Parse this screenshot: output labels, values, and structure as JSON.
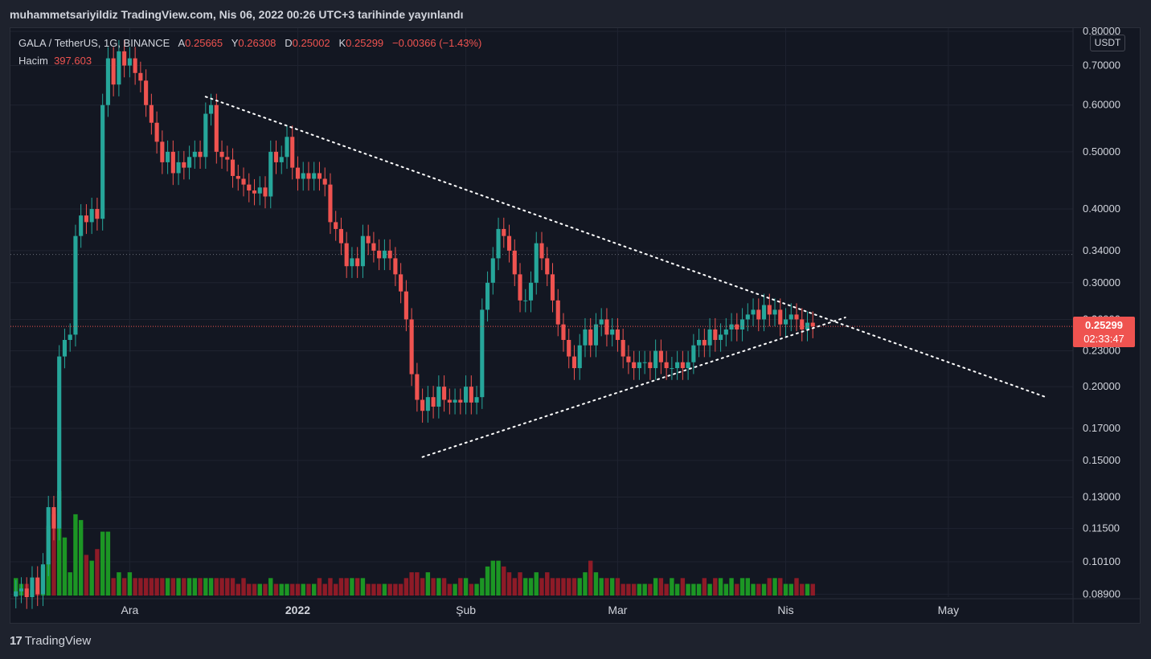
{
  "caption": "muhammetsariyildiz TradingView.com, Nis 06, 2022 00:26 UTC+3 tarihinde yayınlandı",
  "legend": {
    "symbol": "GALA / TetherUS, 1G, BINANCE",
    "open_label": "A",
    "open": "0.25665",
    "high_label": "Y",
    "high": "0.26308",
    "low_label": "D",
    "low": "0.25002",
    "close_label": "K",
    "close": "0.25299",
    "change": "−0.00366 (−1.43%)",
    "volume_label": "Hacim",
    "volume": "397.603"
  },
  "currency": "USDT",
  "last_price": {
    "price": "0.25299",
    "countdown": "02:33:47"
  },
  "footer": {
    "brand": "TradingView"
  },
  "colors": {
    "up": "#26a69a",
    "down": "#ef5350",
    "vol_up": "#1c9624",
    "vol_down": "#8e1b27",
    "background": "#131722",
    "grid": "#1f2330"
  },
  "chart_data": {
    "type": "candlestick",
    "y_scale": "log",
    "ylim": [
      0.088,
      0.81
    ],
    "y_ticks": [
      0.8,
      0.7,
      0.6,
      0.5,
      0.4,
      0.34,
      0.3,
      0.26,
      0.23,
      0.2,
      0.17,
      0.15,
      0.13,
      0.115,
      0.101,
      0.089
    ],
    "y_tick_labels": [
      "0.80000",
      "0.70000",
      "0.60000",
      "0.50000",
      "0.40000",
      "0.34000",
      "0.30000",
      "0.26000",
      "0.23000",
      "0.20000",
      "0.17000",
      "0.15000",
      "0.13000",
      "0.11500",
      "0.10100",
      "0.08900"
    ],
    "x_ticks": [
      {
        "label": "Ara",
        "date": "2021-12-01"
      },
      {
        "label": "2022",
        "date": "2022-01-01"
      },
      {
        "label": "Şub",
        "date": "2022-02-01"
      },
      {
        "label": "Mar",
        "date": "2022-03-01"
      },
      {
        "label": "Nis",
        "date": "2022-04-01"
      },
      {
        "label": "May",
        "date": "2022-05-01"
      }
    ],
    "x_range": [
      "2021-11-09",
      "2022-05-24"
    ],
    "dashed_price_level": 0.335,
    "candles": [
      {
        "d": "2021-11-10",
        "c": 0.09
      },
      {
        "d": "2021-11-11",
        "c": 0.091
      },
      {
        "d": "2021-11-12",
        "c": 0.088
      },
      {
        "d": "2021-11-13",
        "c": 0.095
      },
      {
        "d": "2021-11-14",
        "c": 0.089
      },
      {
        "d": "2021-11-15",
        "c": 0.1
      },
      {
        "d": "2021-11-16",
        "c": 0.125
      },
      {
        "d": "2021-11-17",
        "c": 0.115
      },
      {
        "d": "2021-11-18",
        "c": 0.225
      },
      {
        "d": "2021-11-19",
        "c": 0.24
      },
      {
        "d": "2021-11-20",
        "c": 0.245
      },
      {
        "d": "2021-11-21",
        "c": 0.36
      },
      {
        "d": "2021-11-22",
        "c": 0.39
      },
      {
        "d": "2021-11-23",
        "c": 0.38
      },
      {
        "d": "2021-11-24",
        "c": 0.4
      },
      {
        "d": "2021-11-25",
        "c": 0.385
      },
      {
        "d": "2021-11-26",
        "c": 0.6
      },
      {
        "d": "2021-11-27",
        "c": 0.72
      },
      {
        "d": "2021-11-28",
        "c": 0.65
      },
      {
        "d": "2021-11-29",
        "c": 0.74
      },
      {
        "d": "2021-11-30",
        "c": 0.7
      },
      {
        "d": "2021-12-01",
        "c": 0.72
      },
      {
        "d": "2021-12-02",
        "c": 0.68
      },
      {
        "d": "2021-12-03",
        "c": 0.66
      },
      {
        "d": "2021-12-04",
        "c": 0.6
      },
      {
        "d": "2021-12-05",
        "c": 0.56
      },
      {
        "d": "2021-12-06",
        "c": 0.52
      },
      {
        "d": "2021-12-07",
        "c": 0.48
      },
      {
        "d": "2021-12-08",
        "c": 0.5
      },
      {
        "d": "2021-12-09",
        "c": 0.46
      },
      {
        "d": "2021-12-10",
        "c": 0.48
      },
      {
        "d": "2021-12-11",
        "c": 0.47
      },
      {
        "d": "2021-12-12",
        "c": 0.49
      },
      {
        "d": "2021-12-13",
        "c": 0.5
      },
      {
        "d": "2021-12-14",
        "c": 0.49
      },
      {
        "d": "2021-12-15",
        "c": 0.58
      },
      {
        "d": "2021-12-16",
        "c": 0.6
      },
      {
        "d": "2021-12-17",
        "c": 0.5
      },
      {
        "d": "2021-12-18",
        "c": 0.49
      },
      {
        "d": "2021-12-19",
        "c": 0.485
      },
      {
        "d": "2021-12-20",
        "c": 0.455
      },
      {
        "d": "2021-12-21",
        "c": 0.45
      },
      {
        "d": "2021-12-22",
        "c": 0.44
      },
      {
        "d": "2021-12-23",
        "c": 0.43
      },
      {
        "d": "2021-12-24",
        "c": 0.425
      },
      {
        "d": "2021-12-25",
        "c": 0.435
      },
      {
        "d": "2021-12-26",
        "c": 0.42
      },
      {
        "d": "2021-12-27",
        "c": 0.5
      },
      {
        "d": "2021-12-28",
        "c": 0.48
      },
      {
        "d": "2021-12-29",
        "c": 0.49
      },
      {
        "d": "2021-12-30",
        "c": 0.53
      },
      {
        "d": "2021-12-31",
        "c": 0.47
      },
      {
        "d": "2022-01-01",
        "c": 0.45
      },
      {
        "d": "2022-01-02",
        "c": 0.46
      },
      {
        "d": "2022-01-03",
        "c": 0.45
      },
      {
        "d": "2022-01-04",
        "c": 0.46
      },
      {
        "d": "2022-01-05",
        "c": 0.45
      },
      {
        "d": "2022-01-06",
        "c": 0.44
      },
      {
        "d": "2022-01-07",
        "c": 0.38
      },
      {
        "d": "2022-01-08",
        "c": 0.37
      },
      {
        "d": "2022-01-09",
        "c": 0.35
      },
      {
        "d": "2022-01-10",
        "c": 0.32
      },
      {
        "d": "2022-01-11",
        "c": 0.33
      },
      {
        "d": "2022-01-12",
        "c": 0.32
      },
      {
        "d": "2022-01-13",
        "c": 0.36
      },
      {
        "d": "2022-01-14",
        "c": 0.35
      },
      {
        "d": "2022-01-15",
        "c": 0.34
      },
      {
        "d": "2022-01-16",
        "c": 0.33
      },
      {
        "d": "2022-01-17",
        "c": 0.34
      },
      {
        "d": "2022-01-18",
        "c": 0.33
      },
      {
        "d": "2022-01-19",
        "c": 0.31
      },
      {
        "d": "2022-01-20",
        "c": 0.29
      },
      {
        "d": "2022-01-21",
        "c": 0.26
      },
      {
        "d": "2022-01-22",
        "c": 0.21
      },
      {
        "d": "2022-01-23",
        "c": 0.19
      },
      {
        "d": "2022-01-24",
        "c": 0.182
      },
      {
        "d": "2022-01-25",
        "c": 0.192
      },
      {
        "d": "2022-01-26",
        "c": 0.185
      },
      {
        "d": "2022-01-27",
        "c": 0.2
      },
      {
        "d": "2022-01-28",
        "c": 0.19
      },
      {
        "d": "2022-01-29",
        "c": 0.188
      },
      {
        "d": "2022-01-30",
        "c": 0.19
      },
      {
        "d": "2022-01-31",
        "c": 0.188
      },
      {
        "d": "2022-02-01",
        "c": 0.2
      },
      {
        "d": "2022-02-02",
        "c": 0.188
      },
      {
        "d": "2022-02-03",
        "c": 0.192
      },
      {
        "d": "2022-02-04",
        "c": 0.27
      },
      {
        "d": "2022-02-05",
        "c": 0.3
      },
      {
        "d": "2022-02-06",
        "c": 0.33
      },
      {
        "d": "2022-02-07",
        "c": 0.37
      },
      {
        "d": "2022-02-08",
        "c": 0.36
      },
      {
        "d": "2022-02-09",
        "c": 0.34
      },
      {
        "d": "2022-02-10",
        "c": 0.31
      },
      {
        "d": "2022-02-11",
        "c": 0.28
      },
      {
        "d": "2022-02-12",
        "c": 0.28
      },
      {
        "d": "2022-02-13",
        "c": 0.3
      },
      {
        "d": "2022-02-14",
        "c": 0.35
      },
      {
        "d": "2022-02-15",
        "c": 0.33
      },
      {
        "d": "2022-02-16",
        "c": 0.31
      },
      {
        "d": "2022-02-17",
        "c": 0.28
      },
      {
        "d": "2022-02-18",
        "c": 0.255
      },
      {
        "d": "2022-02-19",
        "c": 0.24
      },
      {
        "d": "2022-02-20",
        "c": 0.225
      },
      {
        "d": "2022-02-21",
        "c": 0.215
      },
      {
        "d": "2022-02-22",
        "c": 0.235
      },
      {
        "d": "2022-02-23",
        "c": 0.25
      },
      {
        "d": "2022-02-24",
        "c": 0.235
      },
      {
        "d": "2022-02-25",
        "c": 0.255
      },
      {
        "d": "2022-02-26",
        "c": 0.26
      },
      {
        "d": "2022-02-27",
        "c": 0.245
      },
      {
        "d": "2022-02-28",
        "c": 0.25
      },
      {
        "d": "2022-03-01",
        "c": 0.24
      },
      {
        "d": "2022-03-02",
        "c": 0.225
      },
      {
        "d": "2022-03-03",
        "c": 0.22
      },
      {
        "d": "2022-03-04",
        "c": 0.215
      },
      {
        "d": "2022-03-05",
        "c": 0.22
      },
      {
        "d": "2022-03-06",
        "c": 0.22
      },
      {
        "d": "2022-03-07",
        "c": 0.215
      },
      {
        "d": "2022-03-08",
        "c": 0.23
      },
      {
        "d": "2022-03-09",
        "c": 0.22
      },
      {
        "d": "2022-03-10",
        "c": 0.215
      },
      {
        "d": "2022-03-11",
        "c": 0.215
      },
      {
        "d": "2022-03-12",
        "c": 0.22
      },
      {
        "d": "2022-03-13",
        "c": 0.215
      },
      {
        "d": "2022-03-14",
        "c": 0.22
      },
      {
        "d": "2022-03-15",
        "c": 0.235
      },
      {
        "d": "2022-03-16",
        "c": 0.24
      },
      {
        "d": "2022-03-17",
        "c": 0.235
      },
      {
        "d": "2022-03-18",
        "c": 0.25
      },
      {
        "d": "2022-03-19",
        "c": 0.24
      },
      {
        "d": "2022-03-20",
        "c": 0.245
      },
      {
        "d": "2022-03-21",
        "c": 0.25
      },
      {
        "d": "2022-03-22",
        "c": 0.255
      },
      {
        "d": "2022-03-23",
        "c": 0.25
      },
      {
        "d": "2022-03-24",
        "c": 0.26
      },
      {
        "d": "2022-03-25",
        "c": 0.265
      },
      {
        "d": "2022-03-26",
        "c": 0.27
      },
      {
        "d": "2022-03-27",
        "c": 0.26
      },
      {
        "d": "2022-03-28",
        "c": 0.275
      },
      {
        "d": "2022-03-29",
        "c": 0.265
      },
      {
        "d": "2022-03-30",
        "c": 0.27
      },
      {
        "d": "2022-03-31",
        "c": 0.255
      },
      {
        "d": "2022-04-01",
        "c": 0.26
      },
      {
        "d": "2022-04-02",
        "c": 0.265
      },
      {
        "d": "2022-04-03",
        "c": 0.26
      },
      {
        "d": "2022-04-04",
        "c": 0.25
      },
      {
        "d": "2022-04-05",
        "c": 0.2567
      },
      {
        "d": "2022-04-06",
        "c": 0.25299
      }
    ],
    "volumes": [
      3,
      2,
      2,
      1,
      1,
      5,
      12,
      14,
      18,
      10,
      4,
      14,
      13,
      7,
      6,
      8,
      11,
      11,
      3,
      4,
      3,
      4,
      3,
      3,
      3,
      3,
      3,
      3,
      3,
      3,
      3,
      3,
      3,
      3,
      3,
      3,
      3,
      3,
      3,
      3,
      3,
      2,
      3,
      2,
      2,
      2,
      2,
      3,
      2,
      2,
      2,
      2,
      2,
      2,
      2,
      2,
      3,
      2,
      3,
      2,
      3,
      3,
      3,
      3,
      3,
      2,
      2,
      2,
      2,
      2,
      2,
      2,
      3,
      4,
      4,
      3,
      4,
      3,
      3,
      3,
      2,
      2,
      3,
      3,
      2,
      2,
      3,
      5,
      6,
      6,
      5,
      4,
      3,
      4,
      3,
      3,
      4,
      3,
      4,
      3,
      3,
      3,
      3,
      3,
      3,
      4,
      6,
      4,
      3,
      3,
      3,
      3,
      2,
      2,
      2,
      2,
      2,
      2,
      3,
      3,
      2,
      3,
      2,
      3,
      2,
      2,
      2,
      3,
      2,
      3,
      3,
      2,
      3,
      2,
      3,
      3,
      2,
      2,
      2,
      3,
      3,
      3,
      2,
      2,
      3,
      2,
      2,
      2
    ],
    "trendlines": [
      {
        "from": {
          "d": "2021-12-15",
          "p": 0.62
        },
        "to": {
          "d": "2022-05-19",
          "p": 0.192
        }
      },
      {
        "from": {
          "d": "2022-01-24",
          "p": 0.152
        },
        "to": {
          "d": "2022-04-12",
          "p": 0.262
        }
      }
    ]
  }
}
